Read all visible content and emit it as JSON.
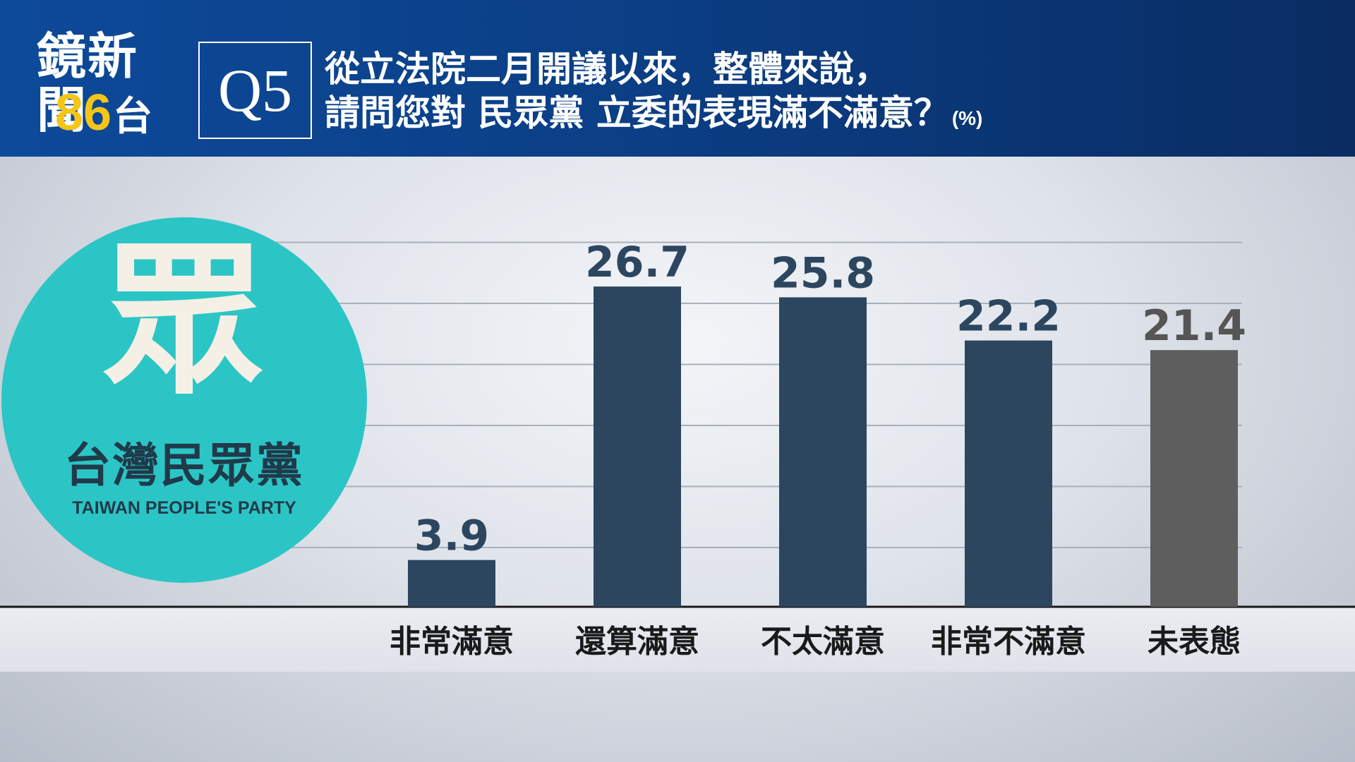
{
  "header": {
    "brand_line1": "鏡新聞",
    "brand_number": "86",
    "brand_suffix": "台",
    "question_id": "Q5",
    "question_line1": "從立法院二月開議以來，整體來說，",
    "question_line2": "請問您對 民眾黨 立委的表現滿不滿意？",
    "unit": "(%)"
  },
  "logo": {
    "glyph": "眾",
    "name_zh": "台灣民眾黨",
    "name_en": "TAIWAN PEOPLE'S PARTY",
    "color": "#2cc5c5"
  },
  "chart_data": {
    "type": "bar",
    "title": "",
    "xlabel": "",
    "ylabel": "",
    "unit": "%",
    "categories": [
      "非常滿意",
      "還算滿意",
      "不太滿意",
      "非常不滿意",
      "未表態"
    ],
    "values": [
      3.9,
      26.7,
      25.8,
      22.2,
      21.4
    ],
    "bar_colors": [
      "#2c4660",
      "#2c4660",
      "#2c4660",
      "#2c4660",
      "#5e5e5e"
    ],
    "label_colors": [
      "#2d4660",
      "#2d4660",
      "#2d4660",
      "#2d4660",
      "#555555"
    ],
    "ylim": [
      0,
      30
    ],
    "grid": true,
    "legend": "none"
  }
}
